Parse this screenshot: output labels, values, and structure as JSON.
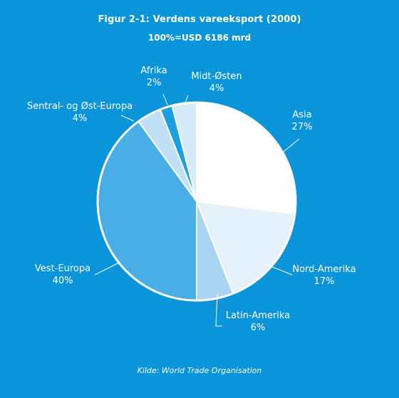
{
  "chart_data": {
    "type": "pie",
    "title": "Figur 2-1: Verdens vareeksport (2000)",
    "subtitle": "100%=USD 6186 mrd",
    "source": "Kilde: World Trade Organisation",
    "slices": [
      {
        "label": "Asia",
        "percent_label": "27%",
        "value": 27,
        "color": "#ffffff"
      },
      {
        "label": "Nord-Amerika",
        "percent_label": "17%",
        "value": 17,
        "color": "#e4f1fb"
      },
      {
        "label": "Latin-Amerika",
        "percent_label": "6%",
        "value": 6,
        "color": "#a9d4f2"
      },
      {
        "label": "Vest-Europa",
        "percent_label": "40%",
        "value": 40,
        "color": "#4aaee6"
      },
      {
        "label": "Sentral- og Øst-Europa",
        "percent_label": "4%",
        "value": 4,
        "color": "#bfe0f6"
      },
      {
        "label": "Afrika",
        "percent_label": "2%",
        "value": 2,
        "color": "#1aa0e0"
      },
      {
        "label": "Midt-Østen",
        "percent_label": "4%",
        "value": 4,
        "color": "#d6ebfa"
      }
    ],
    "start_angle_deg": 0,
    "direction": "clockwise"
  },
  "colors": {
    "background": "#0a95db",
    "outline": "#ffffff"
  }
}
